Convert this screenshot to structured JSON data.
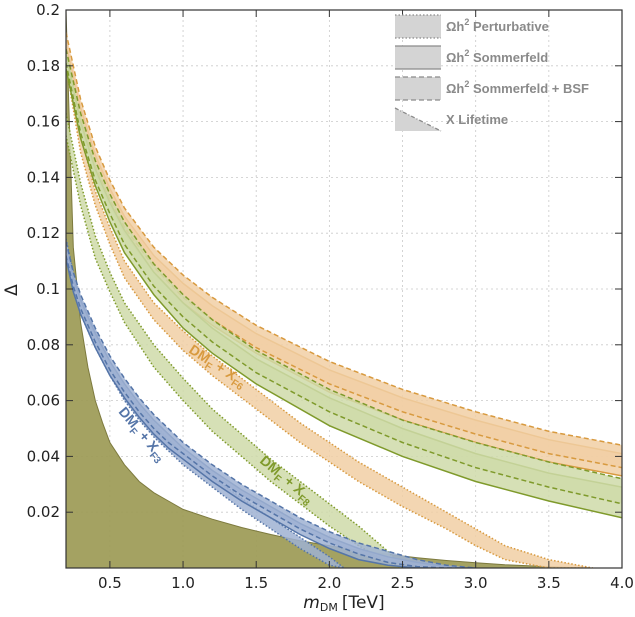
{
  "chart_data": {
    "type": "area",
    "xlabel": "m_DM [TeV]",
    "xlabel_main": "m",
    "xlabel_sub": "DM",
    "xlabel_unit": "[TeV]",
    "ylabel": "Δ",
    "xlim": [
      0.2,
      4.0
    ],
    "ylim": [
      0.0,
      0.2
    ],
    "xticks": [
      0.5,
      1.0,
      1.5,
      2.0,
      2.5,
      3.0,
      3.5,
      4.0
    ],
    "xtick_labels": [
      "0.5",
      "1.0",
      "1.5",
      "2.0",
      "2.5",
      "3.0",
      "3.5",
      "4.0"
    ],
    "yticks": [
      0.02,
      0.04,
      0.06,
      0.08,
      0.1,
      0.12,
      0.14,
      0.16,
      0.18,
      0.2
    ],
    "ytick_labels": [
      "0.02",
      "0.04",
      "0.06",
      "0.08",
      "0.1",
      "0.12",
      "0.14",
      "0.16",
      "0.18",
      "0.2"
    ],
    "colors": {
      "F3": "#5575a8",
      "F3_fill": "#9fb2d2",
      "F6": "#d89a3f",
      "F6_fill": "#f1cfa5",
      "F8": "#7f9a2b",
      "F8_fill": "#cfdba9",
      "lifetime": "#9c9a55",
      "legend_gray": "#8a8a8a",
      "legend_fill": "#d4d4d4"
    },
    "legend": [
      {
        "label": "Ωh² Perturbative",
        "main": "Ωh",
        "sup": "2",
        "rest": " Perturbative",
        "style": "dotted"
      },
      {
        "label": "Ωh² Sommerfeld",
        "main": "Ωh",
        "sup": "2",
        "rest": " Sommerfeld",
        "style": "solid"
      },
      {
        "label": "Ωh² Sommerfeld + BSF",
        "main": "Ωh",
        "sup": "2",
        "rest": " Sommerfeld + BSF",
        "style": "dashed"
      },
      {
        "label": "X Lifetime",
        "main": "X Lifetime",
        "style": "triangle"
      }
    ],
    "annotations": [
      {
        "key": "F6",
        "text": "DM_F + X_F6",
        "a": "DM",
        "a_sub": "F",
        "b": " + X",
        "b_sub": "F6"
      },
      {
        "key": "F3",
        "text": "DM_F + X_F3",
        "a": "DM",
        "a_sub": "F",
        "b": " + X",
        "b_sub": "F3"
      },
      {
        "key": "F8",
        "text": "DM_F + X_F8",
        "a": "DM",
        "a_sub": "F",
        "b": " + X",
        "b_sub": "F8"
      }
    ],
    "series": [
      {
        "name": "X Lifetime",
        "kind": "lifetime",
        "x": [
          0.2,
          0.22,
          0.25,
          0.3,
          0.35,
          0.4,
          0.45,
          0.5,
          0.6,
          0.7,
          0.8,
          0.9,
          1.0,
          1.2,
          1.4,
          1.6,
          1.8,
          2.0,
          2.2,
          2.4,
          2.6,
          2.8,
          3.0,
          3.2,
          3.4,
          3.6,
          3.8
        ],
        "y": [
          0.2,
          0.165,
          0.115,
          0.088,
          0.072,
          0.06,
          0.052,
          0.045,
          0.037,
          0.031,
          0.027,
          0.024,
          0.021,
          0.0175,
          0.0145,
          0.012,
          0.0098,
          0.008,
          0.0063,
          0.0049,
          0.0037,
          0.0027,
          0.0019,
          0.0012,
          0.0007,
          0.0003,
          0.0
        ]
      },
      {
        "name": "DM_F + X_F3 Perturbative",
        "group": "F3",
        "style": "dotted",
        "x": [
          0.2,
          0.25,
          0.3,
          0.4,
          0.5,
          0.6,
          0.7,
          0.8,
          0.9,
          1.0,
          1.2,
          1.4,
          1.6,
          1.8,
          2.0,
          2.1
        ],
        "upper": [
          0.118,
          0.106,
          0.097,
          0.085,
          0.074,
          0.065,
          0.058,
          0.052,
          0.046,
          0.041,
          0.033,
          0.025,
          0.018,
          0.011,
          0.004,
          0.0
        ],
        "lower": [
          0.113,
          0.1,
          0.091,
          0.079,
          0.069,
          0.06,
          0.053,
          0.047,
          0.042,
          0.037,
          0.029,
          0.021,
          0.014,
          0.007,
          0.001,
          0.0
        ]
      },
      {
        "name": "DM_F + X_F6 Perturbative",
        "group": "F6",
        "style": "dotted",
        "x": [
          0.2,
          0.3,
          0.4,
          0.5,
          0.6,
          0.8,
          1.0,
          1.2,
          1.5,
          1.8,
          2.0,
          2.2,
          2.5,
          2.8,
          3.0,
          3.2,
          3.5,
          3.8
        ],
        "upper": [
          0.185,
          0.155,
          0.135,
          0.122,
          0.11,
          0.095,
          0.085,
          0.076,
          0.064,
          0.052,
          0.045,
          0.038,
          0.029,
          0.02,
          0.014,
          0.008,
          0.003,
          0.0
        ],
        "lower": [
          0.18,
          0.149,
          0.13,
          0.116,
          0.104,
          0.089,
          0.078,
          0.069,
          0.057,
          0.045,
          0.038,
          0.031,
          0.022,
          0.014,
          0.008,
          0.003,
          0.0,
          0.0
        ]
      },
      {
        "name": "DM_F + X_F8 Perturbative",
        "group": "F8",
        "style": "dotted",
        "x": [
          0.2,
          0.3,
          0.4,
          0.5,
          0.6,
          0.8,
          1.0,
          1.2,
          1.4,
          1.6,
          1.8,
          2.0,
          2.2,
          2.4,
          2.5
        ],
        "upper": [
          0.163,
          0.138,
          0.119,
          0.106,
          0.095,
          0.08,
          0.068,
          0.057,
          0.048,
          0.039,
          0.031,
          0.023,
          0.015,
          0.006,
          0.0
        ],
        "lower": [
          0.155,
          0.13,
          0.111,
          0.099,
          0.088,
          0.072,
          0.06,
          0.049,
          0.04,
          0.031,
          0.023,
          0.015,
          0.008,
          0.002,
          0.0
        ]
      },
      {
        "name": "DM_F + X_F6 Sommerfeld",
        "group": "F6",
        "style": "solid",
        "x": [
          0.2,
          0.3,
          0.4,
          0.5,
          0.6,
          0.8,
          1.0,
          1.2,
          1.5,
          2.0,
          2.5,
          3.0,
          3.5,
          4.0
        ],
        "upper": [
          0.188,
          0.165,
          0.148,
          0.136,
          0.126,
          0.112,
          0.102,
          0.094,
          0.084,
          0.071,
          0.061,
          0.053,
          0.046,
          0.041
        ],
        "lower": [
          0.184,
          0.159,
          0.142,
          0.13,
          0.12,
          0.106,
          0.095,
          0.087,
          0.077,
          0.063,
          0.053,
          0.045,
          0.038,
          0.033
        ]
      },
      {
        "name": "DM_F + X_F8 Sommerfeld",
        "group": "F8",
        "style": "solid",
        "x": [
          0.2,
          0.3,
          0.4,
          0.5,
          0.6,
          0.8,
          1.0,
          1.2,
          1.5,
          2.0,
          2.5,
          3.0,
          3.5,
          4.0
        ],
        "upper": [
          0.184,
          0.16,
          0.143,
          0.131,
          0.121,
          0.106,
          0.095,
          0.086,
          0.075,
          0.061,
          0.05,
          0.041,
          0.034,
          0.029
        ],
        "lower": [
          0.179,
          0.154,
          0.137,
          0.124,
          0.113,
          0.098,
          0.086,
          0.077,
          0.066,
          0.051,
          0.04,
          0.031,
          0.024,
          0.018
        ]
      },
      {
        "name": "DM_F + X_F6 Sommerfeld + BSF",
        "group": "F6",
        "style": "dashed",
        "x": [
          0.2,
          0.3,
          0.4,
          0.5,
          0.6,
          0.8,
          1.0,
          1.2,
          1.5,
          2.0,
          2.5,
          3.0,
          3.5,
          4.0
        ],
        "upper": [
          0.192,
          0.168,
          0.151,
          0.139,
          0.129,
          0.115,
          0.105,
          0.097,
          0.087,
          0.074,
          0.064,
          0.056,
          0.049,
          0.044
        ],
        "lower": [
          0.186,
          0.161,
          0.144,
          0.132,
          0.122,
          0.108,
          0.097,
          0.089,
          0.079,
          0.066,
          0.056,
          0.048,
          0.041,
          0.036
        ]
      },
      {
        "name": "DM_F + X_F8 Sommerfeld + BSF",
        "group": "F8",
        "style": "dashed",
        "x": [
          0.2,
          0.3,
          0.4,
          0.5,
          0.6,
          0.8,
          1.0,
          1.2,
          1.5,
          2.0,
          2.5,
          3.0,
          3.5,
          4.0
        ],
        "upper": [
          0.186,
          0.163,
          0.146,
          0.134,
          0.124,
          0.109,
          0.098,
          0.089,
          0.078,
          0.064,
          0.053,
          0.045,
          0.038,
          0.032
        ],
        "lower": [
          0.181,
          0.156,
          0.139,
          0.127,
          0.116,
          0.101,
          0.09,
          0.081,
          0.07,
          0.056,
          0.045,
          0.036,
          0.029,
          0.023
        ]
      },
      {
        "name": "DM_F + X_F3 Sommerfeld",
        "group": "F3",
        "style": "solid",
        "x": [
          0.2,
          0.25,
          0.3,
          0.4,
          0.5,
          0.6,
          0.7,
          0.8,
          0.9,
          1.0,
          1.2,
          1.4,
          1.6,
          1.8,
          2.0,
          2.2,
          2.4,
          2.6,
          2.8,
          2.9
        ],
        "upper": [
          0.115,
          0.104,
          0.096,
          0.084,
          0.074,
          0.066,
          0.059,
          0.053,
          0.048,
          0.043,
          0.035,
          0.028,
          0.022,
          0.016,
          0.011,
          0.007,
          0.004,
          0.002,
          0.0005,
          0.0
        ],
        "lower": [
          0.111,
          0.099,
          0.091,
          0.079,
          0.069,
          0.061,
          0.054,
          0.048,
          0.043,
          0.039,
          0.031,
          0.024,
          0.018,
          0.012,
          0.007,
          0.003,
          0.001,
          0.0,
          0.0,
          0.0
        ]
      },
      {
        "name": "DM_F + X_F3 Sommerfeld + BSF",
        "group": "F3",
        "style": "dashed",
        "x": [
          0.2,
          0.25,
          0.3,
          0.4,
          0.5,
          0.6,
          0.7,
          0.8,
          0.9,
          1.0,
          1.2,
          1.4,
          1.6,
          1.8,
          2.0,
          2.2,
          2.4,
          2.6,
          2.8,
          3.0
        ],
        "upper": [
          0.117,
          0.106,
          0.098,
          0.086,
          0.076,
          0.068,
          0.061,
          0.055,
          0.05,
          0.045,
          0.037,
          0.03,
          0.024,
          0.018,
          0.013,
          0.009,
          0.006,
          0.003,
          0.001,
          0.0
        ],
        "lower": [
          0.112,
          0.101,
          0.093,
          0.081,
          0.071,
          0.063,
          0.056,
          0.05,
          0.045,
          0.041,
          0.033,
          0.026,
          0.02,
          0.014,
          0.009,
          0.005,
          0.002,
          0.0005,
          0.0,
          0.0
        ]
      }
    ]
  }
}
